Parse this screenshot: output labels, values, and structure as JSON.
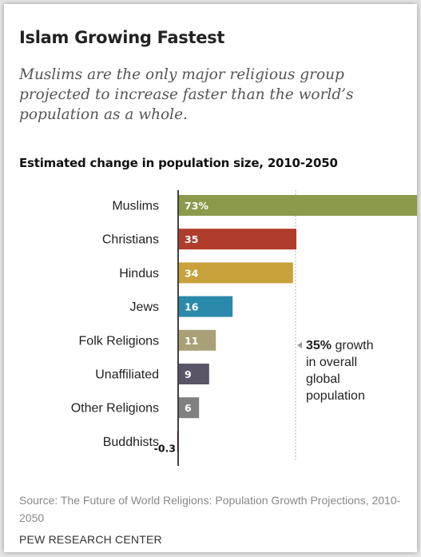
{
  "title": "Islam Growing Fastest",
  "subtitle": "Muslims are the only major religious group projected to increase faster than the world’s population as a whole.",
  "source": "Source: The Future of World Religions: Population Growth Projections, 2010-2050",
  "credit": "PEW RESEARCH CENTER",
  "colors": {
    "Muslims": "#8b9a4b",
    "Christians": "#b03c2c",
    "Hindus": "#c9a23c",
    "Jews": "#2b8aab",
    "Folk Religions": "#a9a078",
    "Unaffiliated": "#5a5566",
    "Other Religions": "#808080",
    "Buddhists": "#a36b6b"
  },
  "chart_data": {
    "type": "bar",
    "orientation": "horizontal",
    "title": "Estimated change in population size, 2010-2050",
    "categories": [
      "Muslims",
      "Christians",
      "Hindus",
      "Jews",
      "Folk Religions",
      "Unaffiliated",
      "Other Religions",
      "Buddhists"
    ],
    "values": [
      73,
      35,
      34,
      16,
      11,
      9,
      6,
      -0.3
    ],
    "value_labels": [
      "73%",
      "35",
      "34",
      "16",
      "11",
      "9",
      "6",
      "-0.3"
    ],
    "reference": {
      "value": 35,
      "label_bold": "35%",
      "label_lines": [
        " growth",
        "in overall",
        "global",
        "population"
      ]
    },
    "xlabel": "",
    "ylabel": "",
    "grid": false,
    "legend": "none"
  }
}
